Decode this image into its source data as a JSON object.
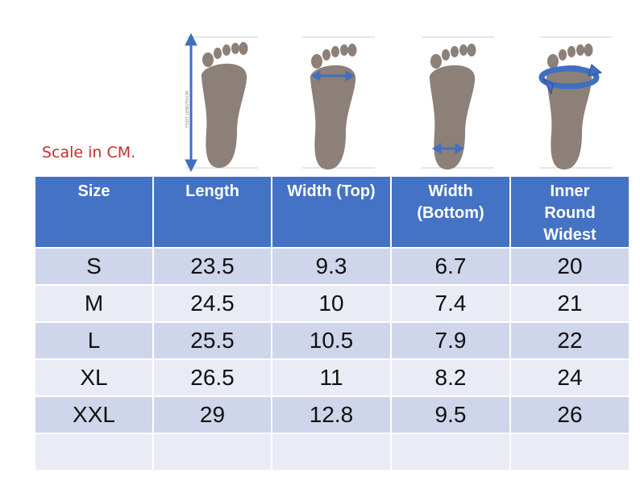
{
  "scale_note": "Scale in CM.",
  "figures": [
    {
      "name": "foot-length-diagram",
      "vertical_label": "FOOT LENGTH/CM"
    },
    {
      "name": "foot-width-top-diagram"
    },
    {
      "name": "foot-width-bottom-diagram"
    },
    {
      "name": "foot-inner-round-diagram"
    }
  ],
  "table": {
    "headers": [
      "Size",
      "Length",
      "Width (Top)",
      "Width\n(Bottom)",
      "Inner\nRound\nWidest"
    ],
    "rows": [
      [
        "S",
        "23.5",
        "9.3",
        "6.7",
        "20"
      ],
      [
        "M",
        "24.5",
        "10",
        "7.4",
        "21"
      ],
      [
        "L",
        "25.5",
        "10.5",
        "7.9",
        "22"
      ],
      [
        "XL",
        "26.5",
        "11",
        "8.2",
        "24"
      ],
      [
        "XXL",
        "29",
        "12.8",
        "9.5",
        "26"
      ],
      [
        "",
        "",
        "",
        "",
        ""
      ]
    ]
  },
  "colors": {
    "header_bg": "#4472c4",
    "row_odd": "#cfd5ea",
    "row_even": "#e9ebf5",
    "foot": "#8c8078",
    "arrow": "#3f6fc0",
    "scale_note": "#c0302b"
  }
}
